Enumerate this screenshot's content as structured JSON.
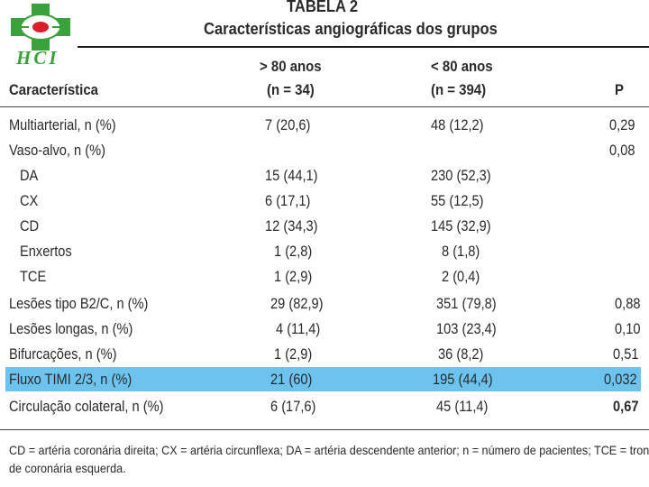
{
  "logo": {
    "text": "HCI"
  },
  "title": {
    "line1": "TABELA 2",
    "line2": "Características angiográficas dos grupos"
  },
  "header": {
    "characteristic": "Característica",
    "group1_line1": "> 80 anos",
    "group1_line2": "(n = 34)",
    "group2_line1": "< 80 anos",
    "group2_line2": "(n = 394)",
    "p": "P"
  },
  "rows": [
    {
      "label": "Multiarterial, n (%)",
      "g1": "7 (20,6)",
      "g2": "48 (12,2)",
      "p": "0,29"
    },
    {
      "label": "Vaso-alvo, n (%)",
      "g1": "",
      "g2": "",
      "p": "0,08"
    },
    {
      "label": "DA",
      "g1": "15 (44,1)",
      "g2": "230 (52,3)",
      "p": ""
    },
    {
      "label": "CX",
      "g1": "6 (17,1)",
      "g2": "55 (12,5)",
      "p": ""
    },
    {
      "label": "CD",
      "g1": "12 (34,3)",
      "g2": "145 (32,9)",
      "p": ""
    },
    {
      "label": "Enxertos",
      "g1": "1 (2,8)",
      "g2": "8 (1,8)",
      "p": ""
    },
    {
      "label": "TCE",
      "g1": "1 (2,9)",
      "g2": "2 (0,4)",
      "p": ""
    },
    {
      "label": "Lesões tipo B2/C, n (%)",
      "g1": "29 (82,9)",
      "g2": "351 (79,8)",
      "p": "0,88"
    },
    {
      "label": "Lesões longas, n (%)",
      "g1": "4 (11,4)",
      "g2": "103 (23,4)",
      "p": "0,10"
    },
    {
      "label": "Bifurcações, n (%)",
      "g1": "1 (2,9)",
      "g2": "36 (8,2)",
      "p": "0,51"
    },
    {
      "label": "Fluxo TIMI 2/3, n (%)",
      "g1": "21 (60)",
      "g2": "195 (44,4)",
      "p": "0,032"
    },
    {
      "label": "Circulação colateral, n (%)",
      "g1": "6 (17,6)",
      "g2": "45 (11,4)",
      "p": "0,67"
    }
  ],
  "footnote": {
    "line1": "CD = artéria coronária direita; CX = artéria circunflexa; DA = artéria descendente anterior; n = número de pacientes; TCE = tronco",
    "line2": "de coronária esquerda."
  },
  "colors": {
    "highlight": "#6cc4ee",
    "logo_green": "#3aa23a",
    "logo_red": "#d8202a"
  }
}
